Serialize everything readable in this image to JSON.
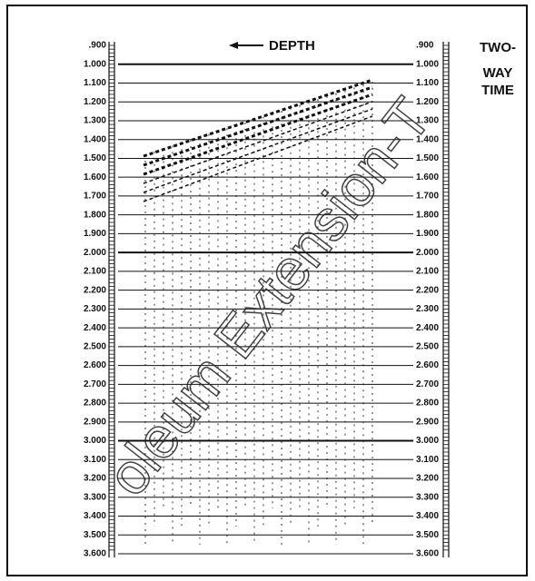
{
  "figure": {
    "depth_label": "DEPTH",
    "time_label_lines": [
      "TWO-",
      "WAY",
      "TIME"
    ],
    "left_ticks": [
      ".900",
      "1.000",
      "1.100",
      "1.200",
      "1.300",
      "1.400",
      "1.500",
      "1.600",
      "1.700",
      "1.800",
      "1.900",
      "2.000",
      "2.100",
      "2.200",
      "2.300",
      "2.400",
      "2.500",
      "2.600",
      "2.700",
      "2.800",
      "2.900",
      "3.000",
      "3.100",
      "3.200",
      "3.300",
      "3.400",
      "3.500",
      "3.600"
    ],
    "right_ticks": [
      ".900",
      "1.000",
      "1.100",
      "1.200",
      "1.300",
      "1.400",
      "1.500",
      "1.600",
      "1.700",
      "1.800",
      "1.900",
      "2.000",
      "2.100",
      "2.200",
      "2.300",
      "2.400",
      "2.500",
      "2.600",
      "2.700",
      "2.800",
      "2.900",
      "3.000",
      "3.100",
      "3.200",
      "3.300",
      "3.400",
      "3.500",
      "3.600"
    ],
    "watermark": "oleum Extension-T"
  }
}
